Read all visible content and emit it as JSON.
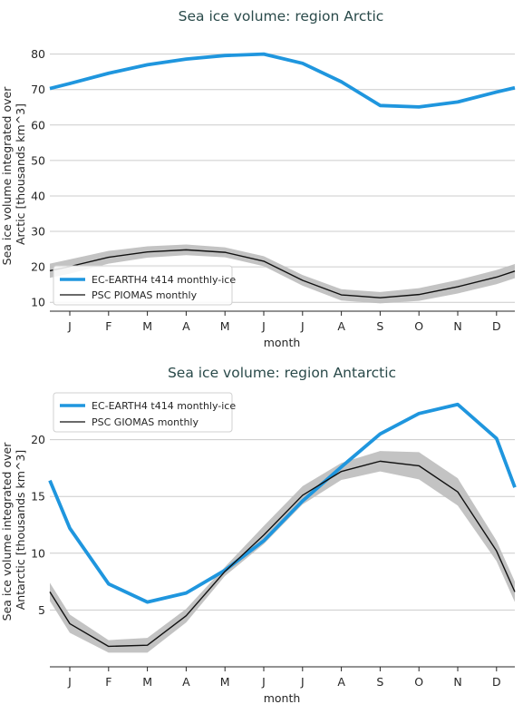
{
  "colors": {
    "model": "#1f96de",
    "obs": "#111111",
    "band": "#bdbdbd"
  },
  "chart_data": [
    {
      "type": "line",
      "title": "Sea ice volume: region Arctic",
      "xlabel": "month",
      "ylabel_lines": [
        "Sea ice volume integrated over",
        "Arctic [thousands km^3]"
      ],
      "categories": [
        "J",
        "F",
        "M",
        "A",
        "M",
        "J",
        "J",
        "A",
        "S",
        "O",
        "N",
        "D"
      ],
      "yticks": [
        10,
        20,
        30,
        40,
        50,
        60,
        70,
        80
      ],
      "ylim": [
        7.5,
        84
      ],
      "grid": true,
      "legend_position": "bottom-left",
      "series": [
        {
          "name": "EC-EARTH4 t414 monthly-ice",
          "kind": "model",
          "values": [
            71.7,
            74.6,
            77.0,
            78.6,
            79.6,
            80.0,
            77.4,
            72.2,
            65.5,
            65.1,
            66.5,
            69.3
          ],
          "start": 70.3,
          "end": 70.5
        },
        {
          "name": "PSC PIOMAS monthly",
          "kind": "obs",
          "values": [
            20.1,
            22.7,
            24.2,
            24.8,
            24.1,
            21.6,
            16.2,
            12.1,
            11.3,
            12.2,
            14.4,
            17.1
          ],
          "start": 18.9,
          "end": 18.8,
          "band": [
            2.0,
            1.8,
            1.6,
            1.5,
            1.4,
            1.4,
            1.5,
            1.6,
            1.6,
            1.8,
            1.9,
            2.0
          ]
        }
      ]
    },
    {
      "type": "line",
      "title": "Sea ice volume: region Antarctic",
      "xlabel": "month",
      "ylabel_lines": [
        "Sea ice volume integrated over",
        "Antarctic [thousands km^3]"
      ],
      "categories": [
        "J",
        "F",
        "M",
        "A",
        "M",
        "J",
        "J",
        "A",
        "S",
        "O",
        "N",
        "D"
      ],
      "yticks": [
        5,
        10,
        15,
        20
      ],
      "ylim": [
        0,
        24.2
      ],
      "grid": true,
      "legend_position": "top-left",
      "series": [
        {
          "name": "EC-EARTH4 t414 monthly-ice",
          "kind": "model",
          "values": [
            12.2,
            7.3,
            5.7,
            6.5,
            8.5,
            11.1,
            14.6,
            17.6,
            20.5,
            22.3,
            23.1,
            20.1
          ],
          "start": 16.4,
          "end": 15.8
        },
        {
          "name": "PSC GIOMAS monthly",
          "kind": "obs",
          "values": [
            3.8,
            1.8,
            1.9,
            4.5,
            8.4,
            11.6,
            15.1,
            17.2,
            18.1,
            17.7,
            15.4,
            10.2
          ],
          "start": 6.6,
          "end": 6.6,
          "band": [
            0.8,
            0.55,
            0.65,
            0.6,
            0.4,
            0.8,
            0.8,
            0.75,
            0.9,
            1.2,
            1.2,
            0.9
          ]
        }
      ]
    }
  ]
}
